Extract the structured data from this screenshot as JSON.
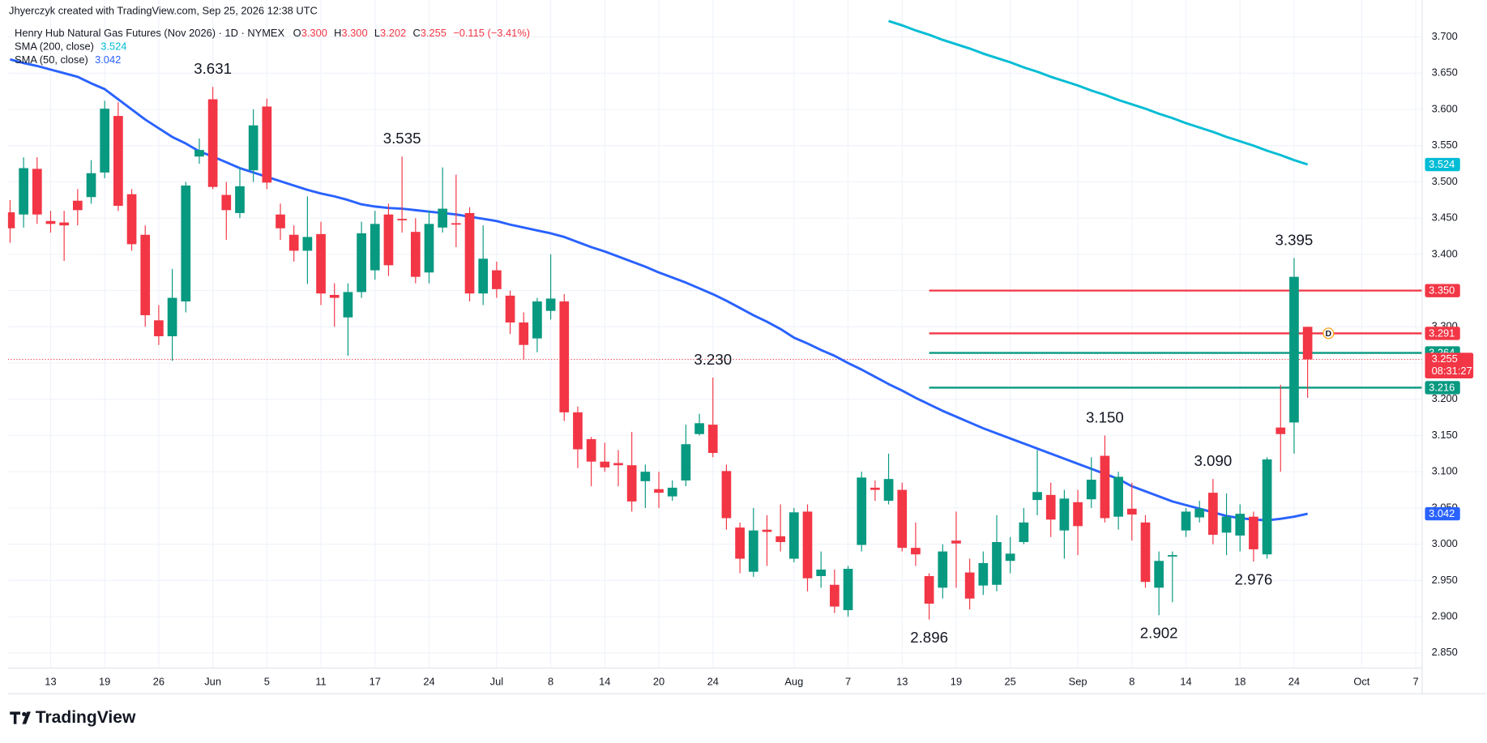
{
  "chart_data": {
    "type": "candlestick",
    "caption": "Jhyerczyk created with TradingView.com, Sep 25, 2026 12:38 UTC",
    "title": "Henry Hub Natural Gas Futures (Nov 2026) · 1D · NYMEX",
    "ohlc_legend": [
      {
        "key": "O",
        "value": 3.3,
        "label": "3.300"
      },
      {
        "key": "H",
        "value": 3.3,
        "label": "3.300"
      },
      {
        "key": "L",
        "value": 3.202,
        "label": "3.202"
      },
      {
        "key": "C",
        "value": 3.255,
        "label": "3.255"
      }
    ],
    "change": "−0.115 (−3.41%)",
    "watermark": "TradingView",
    "event_marker": "D",
    "up_color": "#089981",
    "down_color": "#f23645",
    "categories": [
      null,
      null,
      null,
      "13",
      null,
      null,
      null,
      "19",
      null,
      null,
      null,
      "26",
      null,
      null,
      null,
      "Jun",
      null,
      null,
      null,
      "5",
      null,
      null,
      null,
      "11",
      null,
      null,
      null,
      "17",
      null,
      null,
      null,
      "24",
      null,
      null,
      null,
      null,
      "Jul",
      null,
      null,
      null,
      "8",
      null,
      null,
      null,
      "14",
      null,
      null,
      null,
      "20",
      null,
      null,
      null,
      "24",
      null,
      null,
      null,
      null,
      null,
      "Aug",
      null,
      null,
      null,
      "7",
      null,
      null,
      null,
      "13",
      null,
      null,
      null,
      "19",
      null,
      null,
      null,
      "25",
      null,
      null,
      null,
      null,
      "Sep",
      null,
      null,
      null,
      "8",
      null,
      null,
      null,
      "14",
      null,
      null,
      null,
      "18",
      null,
      null,
      null,
      "24",
      null,
      null,
      null,
      null,
      "Oct",
      null,
      null,
      null,
      "7"
    ],
    "ohlc": {
      "open": [
        3.458,
        3.455,
        3.518,
        3.446,
        3.444,
        3.474,
        3.479,
        3.513,
        3.591,
        3.483,
        3.427,
        3.309,
        3.287,
        3.335,
        3.535,
        3.614,
        3.482,
        3.457,
        3.516,
        3.604,
        3.455,
        3.427,
        3.405,
        3.428,
        3.344,
        3.313,
        3.348,
        3.378,
        3.455,
        3.449,
        3.431,
        3.375,
        3.437,
        3.443,
        3.457,
        3.346,
        3.378,
        3.343,
        3.306,
        3.284,
        3.322,
        3.335,
        3.182,
        3.145,
        3.114,
        3.112,
        3.109,
        3.087,
        3.076,
        3.066,
        3.088,
        3.152,
        3.165,
        3.101,
        3.023,
        2.962,
        3.02,
        3.011,
        2.98,
        3.045,
        2.956,
        2.944,
        2.909,
        2.999,
        3.078,
        3.06,
        3.075,
        2.995,
        2.956,
        2.94,
        3.005,
        2.961,
        2.943,
        2.944,
        2.977,
        3.003,
        3.061,
        3.068,
        3.019,
        3.058,
        3.062,
        3.122,
        3.038,
        3.049,
        3.03,
        2.94,
        2.983,
        3.019,
        3.037,
        3.071,
        3.016,
        3.012,
        3.038,
        2.986,
        3.161,
        3.168,
        3.3,
        null,
        null,
        null,
        null,
        null,
        null,
        null,
        null
      ],
      "high": [
        3.475,
        3.534,
        3.534,
        3.46,
        3.46,
        3.49,
        3.53,
        3.612,
        3.61,
        3.49,
        3.44,
        3.33,
        3.38,
        3.5,
        3.56,
        3.631,
        3.5,
        3.52,
        3.6,
        3.615,
        3.47,
        3.44,
        3.48,
        3.445,
        3.36,
        3.36,
        3.445,
        3.46,
        3.47,
        3.535,
        3.45,
        3.46,
        3.52,
        3.51,
        3.465,
        3.44,
        3.39,
        3.35,
        3.32,
        3.34,
        3.4,
        3.345,
        3.19,
        3.148,
        3.14,
        3.13,
        3.155,
        3.11,
        3.1,
        3.088,
        3.165,
        3.18,
        3.23,
        3.11,
        3.03,
        3.05,
        3.04,
        3.055,
        3.05,
        3.055,
        2.99,
        2.965,
        2.97,
        3.1,
        3.088,
        3.125,
        3.085,
        3.03,
        2.96,
        3.0,
        3.045,
        2.98,
        2.99,
        3.04,
        3.01,
        3.05,
        3.13,
        3.085,
        3.075,
        3.075,
        3.12,
        3.15,
        3.1,
        3.085,
        3.04,
        2.99,
        2.99,
        3.05,
        3.06,
        3.09,
        3.07,
        3.055,
        3.045,
        3.12,
        3.22,
        3.395,
        3.3,
        null,
        null,
        null,
        null,
        null,
        null,
        null,
        null
      ],
      "low": [
        3.416,
        3.437,
        3.442,
        3.43,
        3.391,
        3.44,
        3.47,
        3.505,
        3.46,
        3.405,
        3.3,
        3.275,
        3.253,
        3.32,
        3.525,
        3.49,
        3.42,
        3.45,
        3.5,
        3.49,
        3.42,
        3.39,
        3.359,
        3.33,
        3.3,
        3.26,
        3.34,
        3.365,
        3.37,
        3.43,
        3.36,
        3.36,
        3.43,
        3.41,
        3.335,
        3.33,
        3.34,
        3.29,
        3.255,
        3.265,
        3.31,
        3.17,
        3.105,
        3.08,
        3.1,
        3.08,
        3.045,
        3.05,
        3.05,
        3.06,
        3.08,
        3.15,
        3.12,
        3.02,
        2.96,
        2.955,
        2.97,
        2.99,
        2.975,
        2.935,
        2.94,
        2.905,
        2.9,
        2.99,
        3.06,
        3.055,
        2.99,
        2.97,
        2.896,
        2.925,
        2.94,
        2.91,
        2.93,
        2.935,
        2.96,
        3.0,
        3.04,
        3.01,
        2.98,
        2.985,
        3.05,
        3.03,
        3.02,
        3.005,
        2.94,
        2.902,
        2.92,
        3.01,
        3.03,
        3.0,
        2.985,
        2.99,
        2.976,
        2.98,
        3.1,
        3.125,
        3.202,
        null,
        null,
        null,
        null,
        null,
        null,
        null,
        null
      ],
      "close": [
        3.436,
        3.519,
        3.455,
        3.442,
        3.44,
        3.461,
        3.512,
        3.601,
        3.467,
        3.414,
        3.316,
        3.287,
        3.34,
        3.495,
        3.544,
        3.493,
        3.461,
        3.494,
        3.578,
        3.499,
        3.436,
        3.405,
        3.424,
        3.346,
        3.34,
        3.348,
        3.429,
        3.442,
        3.385,
        3.447,
        3.369,
        3.442,
        3.463,
        3.441,
        3.346,
        3.394,
        3.352,
        3.306,
        3.275,
        3.335,
        3.339,
        3.182,
        3.131,
        3.114,
        3.106,
        3.109,
        3.059,
        3.1,
        3.071,
        3.078,
        3.138,
        3.167,
        3.126,
        3.036,
        2.98,
        3.019,
        3.017,
        3.003,
        3.044,
        2.953,
        2.965,
        2.914,
        2.966,
        3.092,
        3.075,
        3.09,
        2.995,
        2.986,
        2.918,
        2.99,
        3.001,
        2.925,
        2.974,
        3.003,
        2.987,
        3.03,
        3.072,
        3.034,
        3.063,
        3.025,
        3.089,
        3.036,
        3.093,
        3.041,
        2.948,
        2.977,
        2.985,
        3.045,
        3.049,
        3.013,
        3.038,
        3.042,
        2.993,
        3.117,
        3.152,
        3.369,
        3.255,
        null,
        null,
        null,
        null,
        null,
        null,
        null,
        null
      ]
    },
    "series": [
      {
        "name": "SMA (200, close)",
        "color": "#00bcd4",
        "last_label": "3.524",
        "values": [
          null,
          null,
          null,
          null,
          null,
          null,
          null,
          null,
          null,
          null,
          null,
          null,
          null,
          null,
          null,
          null,
          null,
          null,
          null,
          null,
          null,
          null,
          null,
          null,
          null,
          null,
          null,
          null,
          null,
          null,
          null,
          null,
          null,
          null,
          null,
          null,
          null,
          null,
          null,
          null,
          null,
          null,
          null,
          null,
          null,
          null,
          null,
          null,
          null,
          null,
          null,
          null,
          null,
          null,
          null,
          null,
          null,
          null,
          null,
          null,
          null,
          null,
          null,
          null,
          null,
          3.722,
          3.716,
          3.709,
          3.703,
          3.696,
          3.69,
          3.684,
          3.677,
          3.671,
          3.665,
          3.658,
          3.652,
          3.645,
          3.639,
          3.633,
          3.626,
          3.62,
          3.613,
          3.607,
          3.601,
          3.594,
          3.588,
          3.581,
          3.575,
          3.569,
          3.562,
          3.556,
          3.55,
          3.543,
          3.537,
          3.53,
          3.524,
          null,
          null,
          null,
          null,
          null,
          null,
          null,
          null
        ]
      },
      {
        "name": "SMA (50, close)",
        "color": "#2962ff",
        "last_label": "3.042",
        "values": [
          3.669,
          3.664,
          3.66,
          3.655,
          3.65,
          3.645,
          3.636,
          3.628,
          3.614,
          3.6,
          3.586,
          3.574,
          3.562,
          3.553,
          3.542,
          3.535,
          3.527,
          3.519,
          3.513,
          3.507,
          3.501,
          3.495,
          3.489,
          3.484,
          3.48,
          3.475,
          3.469,
          3.466,
          3.464,
          3.463,
          3.461,
          3.459,
          3.457,
          3.455,
          3.452,
          3.449,
          3.446,
          3.441,
          3.437,
          3.433,
          3.429,
          3.424,
          3.417,
          3.41,
          3.404,
          3.397,
          3.39,
          3.383,
          3.375,
          3.368,
          3.361,
          3.353,
          3.345,
          3.336,
          3.326,
          3.316,
          3.307,
          3.297,
          3.285,
          3.277,
          3.268,
          3.26,
          3.25,
          3.241,
          3.231,
          3.221,
          3.212,
          3.202,
          3.193,
          3.184,
          3.176,
          3.168,
          3.16,
          3.153,
          3.146,
          3.139,
          3.132,
          3.125,
          3.118,
          3.111,
          3.104,
          3.097,
          3.09,
          3.08,
          3.073,
          3.066,
          3.059,
          3.054,
          3.049,
          3.044,
          3.039,
          3.036,
          3.034,
          3.033,
          3.035,
          3.038,
          3.042,
          null,
          null,
          null,
          null,
          null,
          null,
          null,
          null
        ]
      }
    ],
    "hlines": [
      {
        "value": 3.35,
        "label": "3.350",
        "color": "#f23645"
      },
      {
        "value": 3.291,
        "label": "3.291",
        "color": "#f23645"
      },
      {
        "value": 3.264,
        "label": "3.264",
        "color": "#089981"
      },
      {
        "value": 3.216,
        "label": "3.216",
        "color": "#089981"
      }
    ],
    "last_price": {
      "value": 3.255,
      "label": "3.255",
      "countdown": "08:31:27"
    },
    "annotations": [
      {
        "label": "3.631",
        "value": 3.631,
        "side": "high"
      },
      {
        "label": "3.535",
        "value": 3.535,
        "side": "high"
      },
      {
        "label": "3.230",
        "value": 3.23,
        "side": "high"
      },
      {
        "label": "3.150",
        "value": 3.15,
        "side": "high"
      },
      {
        "label": "3.090",
        "value": 3.09,
        "side": "high"
      },
      {
        "label": "3.395",
        "value": 3.395,
        "side": "high"
      },
      {
        "label": "2.896",
        "value": 2.896,
        "side": "low"
      },
      {
        "label": "2.902",
        "value": 2.902,
        "side": "low"
      },
      {
        "label": "2.976",
        "value": 2.976,
        "side": "low"
      }
    ],
    "ylim": [
      2.829,
      3.751
    ],
    "yticks": [
      {
        "value": 2.85,
        "label": "2.850"
      },
      {
        "value": 2.9,
        "label": "2.900"
      },
      {
        "value": 2.95,
        "label": "2.950"
      },
      {
        "value": 3.0,
        "label": "3.000"
      },
      {
        "value": 3.05,
        "label": "3.050"
      },
      {
        "value": 3.1,
        "label": "3.100"
      },
      {
        "value": 3.15,
        "label": "3.150"
      },
      {
        "value": 3.2,
        "label": "3.200"
      },
      {
        "value": 3.25,
        "label": "3.250"
      },
      {
        "value": 3.3,
        "label": "3.300"
      },
      {
        "value": 3.35,
        "label": "3.350"
      },
      {
        "value": 3.4,
        "label": "3.400"
      },
      {
        "value": 3.45,
        "label": "3.450"
      },
      {
        "value": 3.5,
        "label": "3.500"
      },
      {
        "value": 3.55,
        "label": "3.550"
      },
      {
        "value": 3.6,
        "label": "3.600"
      },
      {
        "value": 3.65,
        "label": "3.650"
      },
      {
        "value": 3.7,
        "label": "3.700"
      }
    ],
    "grid": true
  }
}
